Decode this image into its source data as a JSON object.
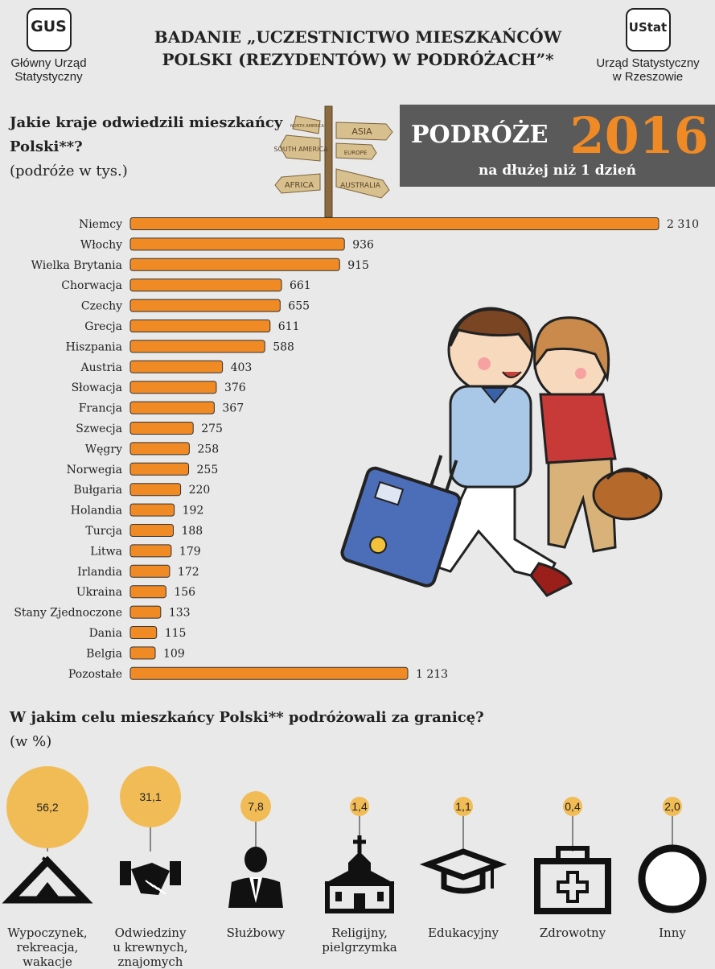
{
  "header": {
    "gus_logo": {
      "mark": "GUS",
      "caption": [
        "Główny Urząd",
        "Statystyczny"
      ]
    },
    "title_lines": [
      "BADANIE „UCZESTNICTWO MIESZKAŃCÓW",
      "POLSKI (REZYDENTÓW) W PODRÓŻACH”*"
    ],
    "us_logo": {
      "mark": "UStat",
      "caption": [
        "Urząd Statystyczny",
        "w Rzeszowie"
      ]
    }
  },
  "banner": {
    "line1": "PODRÓŻE",
    "year": "2016",
    "line2": "na dłużej niż 1 dzień"
  },
  "signpost": {
    "signs": [
      "ASIA",
      "NORTH AMERICA",
      "SOUTH AMERICA",
      "EUROPE",
      "AFRICA",
      "AUSTRALIA"
    ]
  },
  "section1": {
    "question_line1": "Jakie kraje odwiedzili mieszkańcy",
    "question_line2": "Polski**?",
    "unit": "(podróże w tys.)"
  },
  "section2": {
    "question": "W jakim celu mieszkańcy Polski** podróżowali za granicę?",
    "unit": "(w %)"
  },
  "colors": {
    "bar": "#f08a24",
    "bubble": "#f1bc55",
    "banner_bg": "#5a5a5b",
    "page_bg": "#e9e9e9"
  },
  "chart_data": [
    {
      "type": "bar",
      "orientation": "horizontal",
      "categories": [
        "Niemcy",
        "Włochy",
        "Wielka Brytania",
        "Chorwacja",
        "Czechy",
        "Grecja",
        "Hiszpania",
        "Austria",
        "Słowacja",
        "Francja",
        "Szwecja",
        "Węgry",
        "Norwegia",
        "Bułgaria",
        "Holandia",
        "Turcja",
        "Litwa",
        "Irlandia",
        "Ukraina",
        "Stany Zjednoczone",
        "Dania",
        "Belgia",
        "Pozostałe"
      ],
      "values": [
        2310,
        936,
        915,
        661,
        655,
        611,
        588,
        403,
        376,
        367,
        275,
        258,
        255,
        220,
        192,
        188,
        179,
        172,
        156,
        133,
        115,
        109,
        1213
      ],
      "value_labels": [
        "2 310",
        "936",
        "915",
        "661",
        "655",
        "611",
        "588",
        "403",
        "376",
        "367",
        "275",
        "258",
        "255",
        "220",
        "192",
        "188",
        "179",
        "172",
        "156",
        "133",
        "115",
        "109",
        "1 213"
      ],
      "xlim": [
        0,
        2310
      ],
      "grid": false
    },
    {
      "type": "bubble",
      "categories": [
        "Wypoczynek, rekreacja, wakacje",
        "Odwiedziny u krewnych, znajomych",
        "Służbowy",
        "Religijny, pielgrzymka",
        "Edukacyjny",
        "Zdrowotny",
        "Inny"
      ],
      "label_lines": [
        [
          "Wypoczynek,",
          "rekreacja,",
          "wakacje"
        ],
        [
          "Odwiedziny",
          "u krewnych,",
          "znajomych"
        ],
        [
          "Służbowy"
        ],
        [
          "Religijny,",
          "pielgrzymka"
        ],
        [
          "Edukacyjny"
        ],
        [
          "Zdrowotny"
        ],
        [
          "Inny"
        ]
      ],
      "values": [
        56.2,
        31.1,
        7.8,
        1.4,
        1.1,
        0.4,
        2.0
      ],
      "value_labels": [
        "56,2",
        "31,1",
        "7,8",
        "1,4",
        "1,1",
        "0,4",
        "2,0"
      ],
      "icons": [
        "tent-icon",
        "handshake-icon",
        "businessman-icon",
        "church-icon",
        "graduation-cap-icon",
        "first-aid-kit-icon",
        "circle-icon"
      ]
    }
  ]
}
